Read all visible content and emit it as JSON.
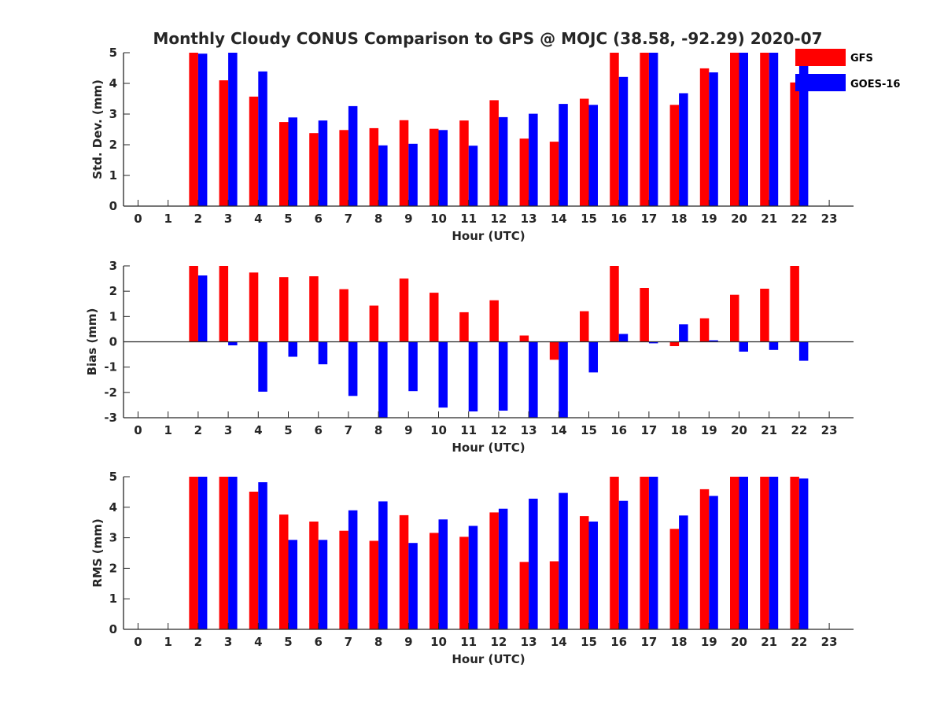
{
  "title": "Monthly Cloudy CONUS Comparison to GPS @ MOJC (38.58, -92.29) 2020-07",
  "legend": {
    "position": "top-right",
    "entries": [
      "GFS",
      "GOES-16"
    ]
  },
  "colors": {
    "GFS": "#ff0000",
    "GOES-16": "#0000ff",
    "axis": "#262626"
  },
  "chart_data": [
    {
      "type": "bar",
      "title": "Monthly Cloudy CONUS Comparison to GPS @ MOJC (38.58, -92.29) 2020-07",
      "xlabel": "Hour (UTC)",
      "ylabel": "Std. Dev. (mm)",
      "ylim": [
        0,
        5
      ],
      "yticks": [
        "0",
        "1",
        "2",
        "3",
        "4",
        "5"
      ],
      "categories": [
        "0",
        "1",
        "2",
        "3",
        "4",
        "5",
        "6",
        "7",
        "8",
        "9",
        "10",
        "11",
        "12",
        "13",
        "14",
        "15",
        "16",
        "17",
        "18",
        "19",
        "20",
        "21",
        "22",
        "23"
      ],
      "series": [
        {
          "name": "GFS",
          "values": [
            null,
            null,
            5.0,
            4.1,
            3.57,
            2.74,
            2.38,
            2.48,
            2.54,
            2.8,
            2.52,
            2.79,
            3.45,
            2.2,
            2.1,
            3.5,
            5.0,
            5.0,
            3.3,
            4.49,
            5.0,
            5.0,
            4.03,
            null
          ]
        },
        {
          "name": "GOES-16",
          "values": [
            null,
            null,
            4.97,
            5.0,
            4.39,
            2.89,
            2.79,
            3.26,
            1.98,
            2.03,
            2.48,
            1.97,
            2.9,
            3.01,
            3.33,
            3.3,
            4.21,
            5.0,
            3.68,
            4.36,
            5.0,
            5.0,
            4.87,
            null
          ]
        }
      ]
    },
    {
      "type": "bar",
      "xlabel": "Hour (UTC)",
      "ylabel": "Bias (mm)",
      "ylim": [
        -3,
        3
      ],
      "yticks": [
        "-3",
        "-2",
        "-1",
        "0",
        "1",
        "2",
        "3"
      ],
      "categories": [
        "0",
        "1",
        "2",
        "3",
        "4",
        "5",
        "6",
        "7",
        "8",
        "9",
        "10",
        "11",
        "12",
        "13",
        "14",
        "15",
        "16",
        "17",
        "18",
        "19",
        "20",
        "21",
        "22",
        "23"
      ],
      "series": [
        {
          "name": "GFS",
          "values": [
            null,
            null,
            3.0,
            3.0,
            2.74,
            2.56,
            2.59,
            2.08,
            1.43,
            2.5,
            1.94,
            1.17,
            1.64,
            0.25,
            -0.71,
            1.21,
            3.0,
            2.13,
            -0.17,
            0.93,
            1.86,
            2.1,
            3.0,
            null
          ]
        },
        {
          "name": "GOES-16",
          "values": [
            null,
            null,
            2.62,
            -0.14,
            -1.97,
            -0.59,
            -0.89,
            -2.14,
            -3.0,
            -1.95,
            -2.6,
            -2.75,
            -2.72,
            -3.0,
            -3.0,
            -1.21,
            0.31,
            -0.06,
            0.69,
            0.06,
            -0.39,
            -0.32,
            -0.75,
            null
          ]
        }
      ]
    },
    {
      "type": "bar",
      "xlabel": "Hour (UTC)",
      "ylabel": "RMS (mm)",
      "ylim": [
        0,
        5
      ],
      "yticks": [
        "0",
        "1",
        "2",
        "3",
        "4",
        "5"
      ],
      "categories": [
        "0",
        "1",
        "2",
        "3",
        "4",
        "5",
        "6",
        "7",
        "8",
        "9",
        "10",
        "11",
        "12",
        "13",
        "14",
        "15",
        "16",
        "17",
        "18",
        "19",
        "20",
        "21",
        "22",
        "23"
      ],
      "series": [
        {
          "name": "GFS",
          "values": [
            null,
            null,
            5.0,
            5.0,
            4.51,
            3.76,
            3.53,
            3.23,
            2.9,
            3.74,
            3.16,
            3.03,
            3.83,
            2.21,
            2.23,
            3.71,
            5.0,
            5.0,
            3.29,
            4.59,
            5.0,
            5.0,
            5.0,
            null
          ]
        },
        {
          "name": "GOES-16",
          "values": [
            null,
            null,
            5.0,
            5.0,
            4.82,
            2.93,
            2.93,
            3.9,
            4.19,
            2.83,
            3.6,
            3.39,
            3.95,
            4.28,
            4.47,
            3.53,
            4.21,
            5.0,
            3.73,
            4.37,
            5.0,
            5.0,
            4.94,
            null
          ]
        }
      ]
    }
  ]
}
